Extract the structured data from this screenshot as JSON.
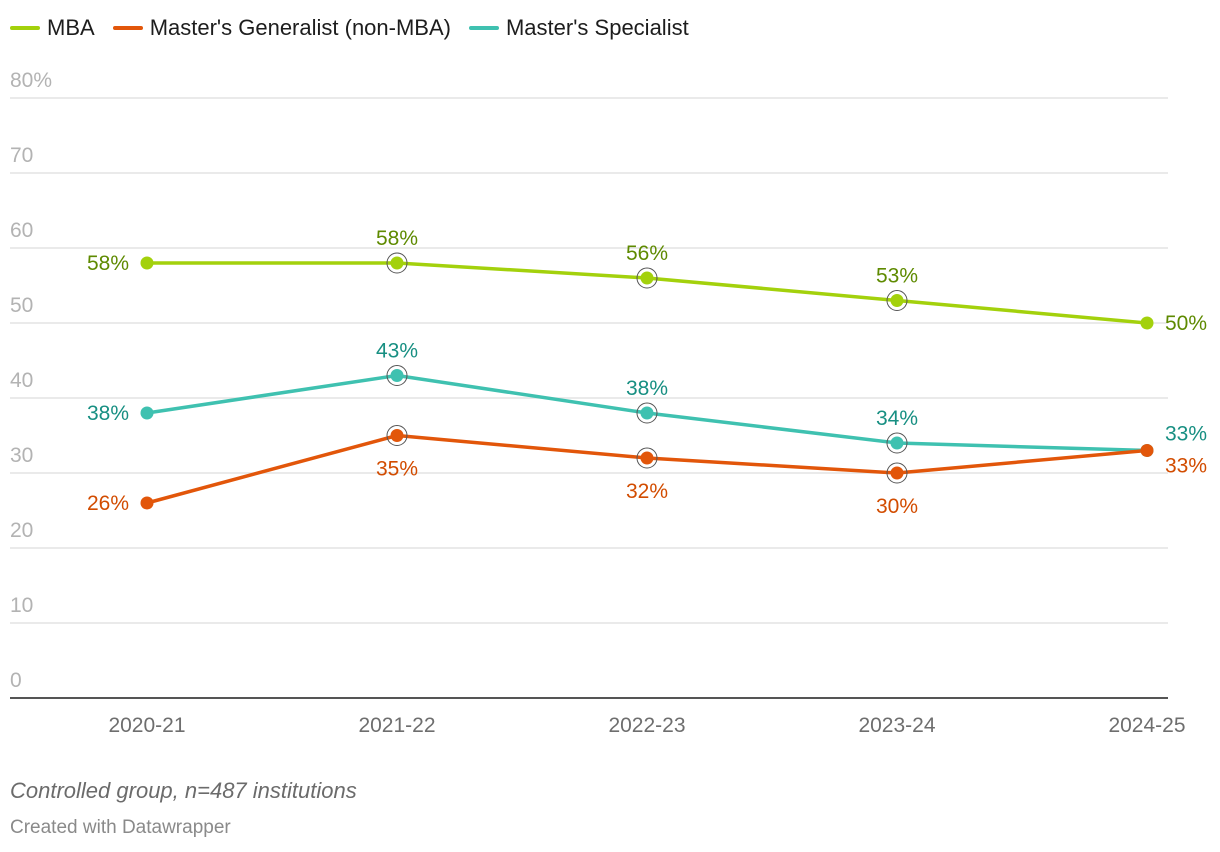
{
  "chart_data": {
    "type": "line",
    "categories": [
      "2020-21",
      "2021-22",
      "2022-23",
      "2023-24",
      "2024-25"
    ],
    "y_ticks": [
      "0",
      "10",
      "20",
      "30",
      "40",
      "50",
      "60",
      "70",
      "80%"
    ],
    "ylim": [
      0,
      80
    ],
    "grid": true,
    "legend_position": "top-left",
    "series": [
      {
        "name": "MBA",
        "color": "#a3d10c",
        "label_color": "#5e8a00",
        "values": [
          58,
          58,
          56,
          53,
          50
        ],
        "labels": [
          "58%",
          "58%",
          "56%",
          "53%",
          "50%"
        ]
      },
      {
        "name": "Master's Generalist (non-MBA)",
        "color": "#e2560a",
        "label_color": "#d24c00",
        "values": [
          26,
          35,
          32,
          30,
          33
        ],
        "labels": [
          "26%",
          "35%",
          "32%",
          "30%",
          "33%"
        ]
      },
      {
        "name": "Master's Specialist",
        "color": "#3fc1b0",
        "label_color": "#178f82",
        "values": [
          38,
          43,
          38,
          34,
          33
        ],
        "labels": [
          "38%",
          "43%",
          "38%",
          "34%",
          "33%"
        ]
      }
    ]
  },
  "footer": {
    "note": "Controlled group, n=487 institutions",
    "credit": "Created with Datawrapper"
  }
}
